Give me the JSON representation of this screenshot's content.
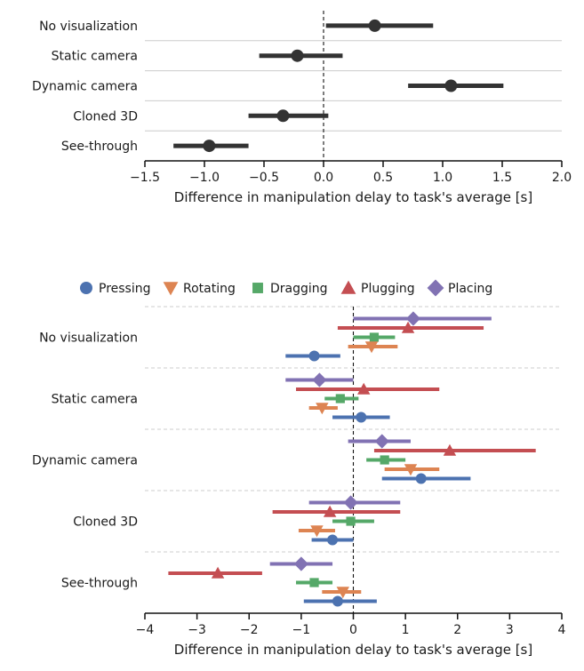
{
  "chart_data": [
    {
      "type": "scatter",
      "subtype": "pointrange",
      "title": "",
      "xlabel": "Difference in manipulation delay to task's average [s]",
      "ylabel": "",
      "xlim": [
        -1.5,
        2.0
      ],
      "xticks": [
        -1.5,
        -1.0,
        -0.5,
        0.0,
        0.5,
        1.0,
        1.5,
        2.0
      ],
      "xtick_labels": [
        "−1.5",
        "−1.0",
        "−0.5",
        "0.0",
        "0.5",
        "1.0",
        "1.5",
        "2.0"
      ],
      "categories": [
        "No visualization",
        "Static camera",
        "Dynamic camera",
        "Cloned 3D",
        "See-through"
      ],
      "series": [
        {
          "color": "#333333",
          "marker": "circle",
          "points": [
            {
              "category": "No visualization",
              "mean": 0.43,
              "low": 0.02,
              "high": 0.92
            },
            {
              "category": "Static camera",
              "mean": -0.22,
              "low": -0.54,
              "high": 0.16
            },
            {
              "category": "Dynamic camera",
              "mean": 1.07,
              "low": 0.71,
              "high": 1.51
            },
            {
              "category": "Cloned 3D",
              "mean": -0.34,
              "low": -0.63,
              "high": 0.04
            },
            {
              "category": "See-through",
              "mean": -0.96,
              "low": -1.26,
              "high": -0.63
            }
          ]
        }
      ],
      "reference_line": 0,
      "grid": "horizontal separators between categories"
    },
    {
      "type": "scatter",
      "subtype": "pointrange",
      "title": "",
      "xlabel": "Difference in manipulation delay to task's average [s]",
      "ylabel": "",
      "xlim": [
        -4,
        4
      ],
      "xticks": [
        -4,
        -3,
        -2,
        -1,
        0,
        1,
        2,
        3,
        4
      ],
      "xtick_labels": [
        "−4",
        "−3",
        "−2",
        "−1",
        "0",
        "1",
        "2",
        "3",
        "4"
      ],
      "categories": [
        "No visualization",
        "Static camera",
        "Dynamic camera",
        "Cloned 3D",
        "See-through"
      ],
      "legend": "top, horizontal",
      "reference_line": 0,
      "grid": "dashed horizontal separators between categories",
      "series": [
        {
          "name": "Placing",
          "color": "#8172b3",
          "marker": "diamond",
          "points": [
            {
              "category": "No visualization",
              "mean": 1.15,
              "low": 0.0,
              "high": 2.65
            },
            {
              "category": "Static camera",
              "mean": -0.65,
              "low": -1.3,
              "high": 0.0
            },
            {
              "category": "Dynamic camera",
              "mean": 0.55,
              "low": -0.1,
              "high": 1.1
            },
            {
              "category": "Cloned 3D",
              "mean": -0.05,
              "low": -0.85,
              "high": 0.9
            },
            {
              "category": "See-through",
              "mean": -1.0,
              "low": -1.6,
              "high": -0.4
            }
          ]
        },
        {
          "name": "Plugging",
          "color": "#c44e52",
          "marker": "triangle-up",
          "points": [
            {
              "category": "No visualization",
              "mean": 1.05,
              "low": -0.3,
              "high": 2.5
            },
            {
              "category": "Static camera",
              "mean": 0.2,
              "low": -1.1,
              "high": 1.65
            },
            {
              "category": "Dynamic camera",
              "mean": 1.85,
              "low": 0.4,
              "high": 3.5
            },
            {
              "category": "Cloned 3D",
              "mean": -0.45,
              "low": -1.55,
              "high": 0.9
            },
            {
              "category": "See-through",
              "mean": -2.6,
              "low": -3.55,
              "high": -1.75
            }
          ]
        },
        {
          "name": "Dragging",
          "color": "#55a868",
          "marker": "square",
          "points": [
            {
              "category": "No visualization",
              "mean": 0.4,
              "low": 0.0,
              "high": 0.8
            },
            {
              "category": "Static camera",
              "mean": -0.25,
              "low": -0.55,
              "high": 0.1
            },
            {
              "category": "Dynamic camera",
              "mean": 0.6,
              "low": 0.25,
              "high": 1.0
            },
            {
              "category": "Cloned 3D",
              "mean": -0.05,
              "low": -0.4,
              "high": 0.4
            },
            {
              "category": "See-through",
              "mean": -0.75,
              "low": -1.1,
              "high": -0.4
            }
          ]
        },
        {
          "name": "Rotating",
          "color": "#dd8452",
          "marker": "triangle-down",
          "points": [
            {
              "category": "No visualization",
              "mean": 0.35,
              "low": -0.1,
              "high": 0.85
            },
            {
              "category": "Static camera",
              "mean": -0.6,
              "low": -0.85,
              "high": -0.3
            },
            {
              "category": "Dynamic camera",
              "mean": 1.1,
              "low": 0.6,
              "high": 1.65
            },
            {
              "category": "Cloned 3D",
              "mean": -0.7,
              "low": -1.05,
              "high": -0.35
            },
            {
              "category": "See-through",
              "mean": -0.2,
              "low": -0.6,
              "high": 0.15
            }
          ]
        },
        {
          "name": "Pressing",
          "color": "#4c72b0",
          "marker": "circle",
          "points": [
            {
              "category": "No visualization",
              "mean": -0.75,
              "low": -1.3,
              "high": -0.25
            },
            {
              "category": "Static camera",
              "mean": 0.15,
              "low": -0.4,
              "high": 0.7
            },
            {
              "category": "Dynamic camera",
              "mean": 1.3,
              "low": 0.55,
              "high": 2.25
            },
            {
              "category": "Cloned 3D",
              "mean": -0.4,
              "low": -0.8,
              "high": 0.0
            },
            {
              "category": "See-through",
              "mean": -0.3,
              "low": -0.95,
              "high": 0.45
            }
          ]
        }
      ],
      "legend_order": [
        "Pressing",
        "Rotating",
        "Dragging",
        "Plugging",
        "Placing"
      ]
    }
  ]
}
